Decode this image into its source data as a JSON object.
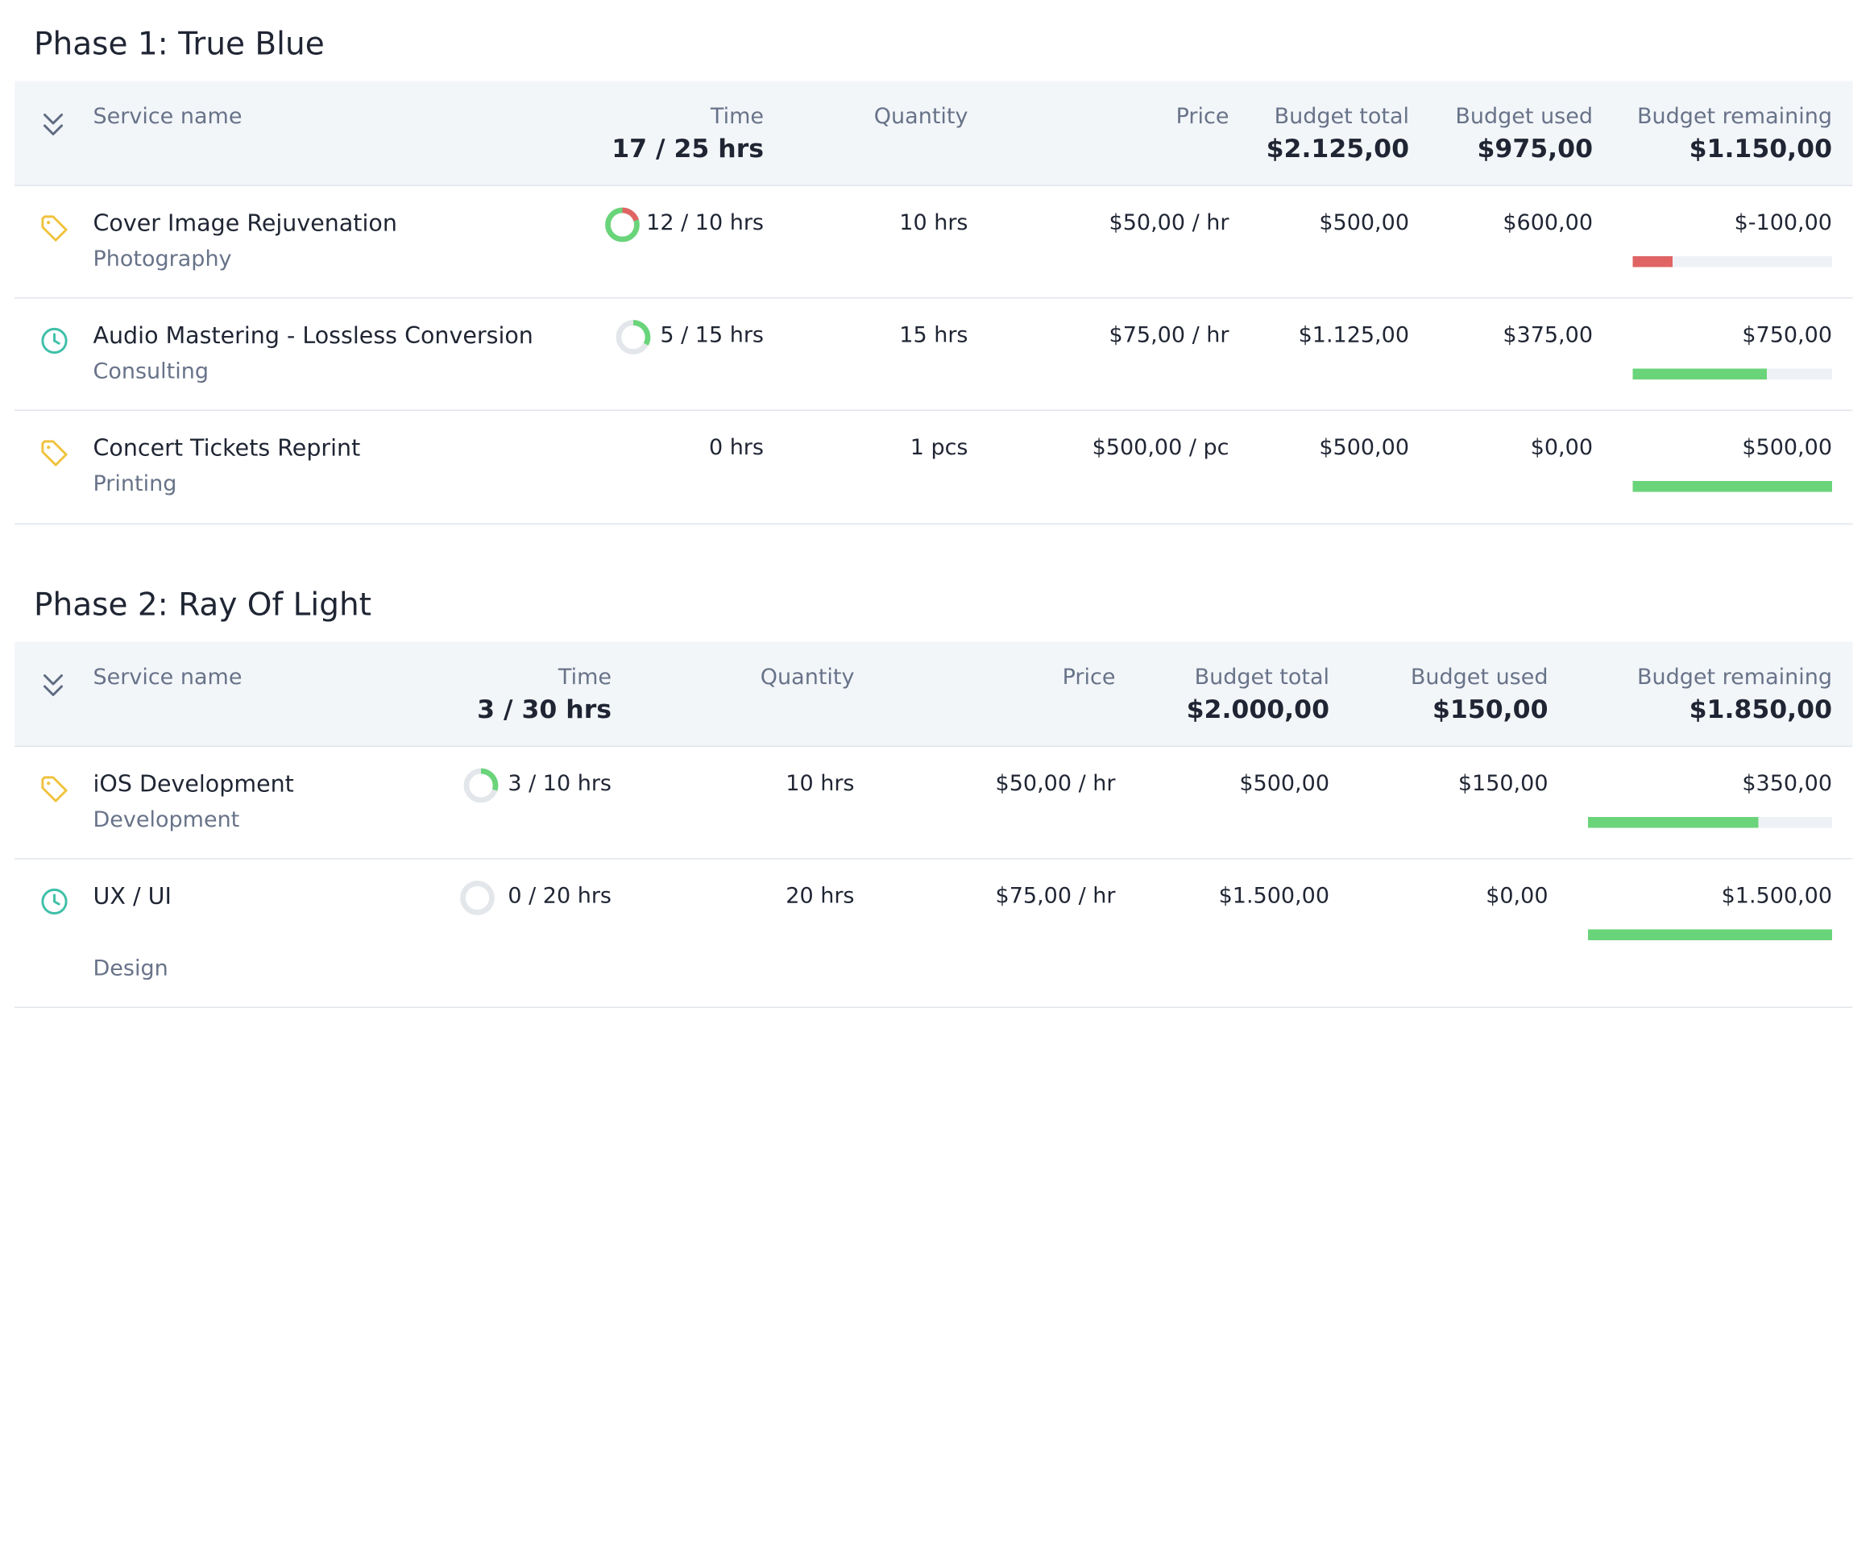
{
  "colors": {
    "green": "#6ad47a",
    "red": "#e06464",
    "tag_icon": "#f0c23c",
    "clock_icon": "#3fbfa8",
    "track": "#e3e6ea"
  },
  "phases": [
    {
      "title": "Phase 1: True Blue",
      "header": {
        "service_name": "Service name",
        "time_label": "Time",
        "time_total": "17 / 25 hrs",
        "quantity_label": "Quantity",
        "price_label": "Price",
        "budget_total_label": "Budget total",
        "budget_total_value": "$2.125,00",
        "budget_used_label": "Budget used",
        "budget_used_value": "$975,00",
        "budget_remaining_label": "Budget remaining",
        "budget_remaining_value": "$1.150,00"
      },
      "rows": [
        {
          "icon": "tag-icon",
          "name": "Cover Image Rejuvenation",
          "category": "Photography",
          "time": "12 / 10 hrs",
          "time_progress": 1.2,
          "quantity": "10 hrs",
          "price": "$50,00 / hr",
          "budget_total": "$500,00",
          "budget_used": "$600,00",
          "budget_remaining": "$-100,00",
          "remaining_fraction": 0.2,
          "remaining_status": "over"
        },
        {
          "icon": "clock-icon",
          "name": "Audio Mastering - Lossless Conversion",
          "category": "Consulting",
          "time": "5 / 15 hrs",
          "time_progress": 0.33,
          "quantity": "15 hrs",
          "price": "$75,00 / hr",
          "budget_total": "$1.125,00",
          "budget_used": "$375,00",
          "budget_remaining": "$750,00",
          "remaining_fraction": 0.67,
          "remaining_status": "ok"
        },
        {
          "icon": "tag-icon",
          "name": "Concert Tickets Reprint",
          "category": "Printing",
          "time": "0 hrs",
          "time_progress": null,
          "quantity": "1 pcs",
          "price": "$500,00 / pc",
          "budget_total": "$500,00",
          "budget_used": "$0,00",
          "budget_remaining": "$500,00",
          "remaining_fraction": 1.0,
          "remaining_status": "ok"
        }
      ]
    },
    {
      "title": "Phase 2: Ray Of Light",
      "header": {
        "service_name": "Service name",
        "time_label": "Time",
        "time_total": "3 / 30 hrs",
        "quantity_label": "Quantity",
        "price_label": "Price",
        "budget_total_label": "Budget total",
        "budget_total_value": "$2.000,00",
        "budget_used_label": "Budget used",
        "budget_used_value": "$150,00",
        "budget_remaining_label": "Budget remaining",
        "budget_remaining_value": "$1.850,00"
      },
      "rows": [
        {
          "icon": "tag-icon",
          "name": "iOS Development",
          "category": "Development",
          "time": "3 / 10 hrs",
          "time_progress": 0.3,
          "quantity": "10 hrs",
          "price": "$50,00 / hr",
          "budget_total": "$500,00",
          "budget_used": "$150,00",
          "budget_remaining": "$350,00",
          "remaining_fraction": 0.7,
          "remaining_status": "ok"
        },
        {
          "icon": "clock-icon",
          "name": "UX / UI",
          "category": "Design",
          "time": "0 / 20 hrs",
          "time_progress": 0,
          "quantity": "20 hrs",
          "price": "$75,00 / hr",
          "budget_total": "$1.500,00",
          "budget_used": "$0,00",
          "budget_remaining": "$1.500,00",
          "remaining_fraction": 1.0,
          "remaining_status": "ok"
        }
      ]
    }
  ]
}
